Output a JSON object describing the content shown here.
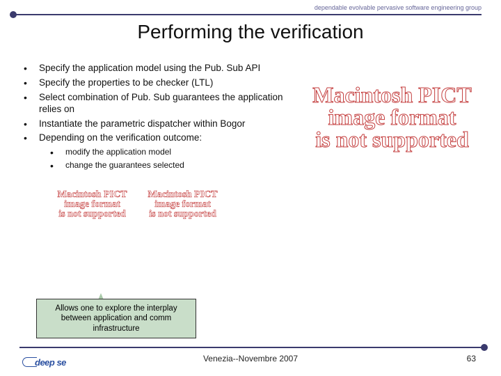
{
  "branding": "dependable evolvable pervasive software engineering group",
  "title": "Performing the verification",
  "bullets": [
    "Specify the application model using the Pub. Sub API",
    "Specify the properties to be checker (LTL)",
    "Select combination of Pub. Sub guarantees the application relies on",
    "Instantiate the parametric dispatcher within Bogor",
    "Depending on the verification outcome:"
  ],
  "sub_bullets": [
    "modify the application model",
    "change the guarantees selected"
  ],
  "pict_large_lines": {
    "l1": "Macintosh PICT",
    "l2": "image format",
    "l3": "is not supported"
  },
  "pict_small": {
    "l1": "Macintosh PICT",
    "l2": "image format",
    "l3": "is not supported"
  },
  "callout": "Allows one to explore the interplay between application and comm infrastructure",
  "footer": {
    "logo": "deep se",
    "center": "Venezia--Novembre 2007",
    "page": "63"
  },
  "colors": {
    "rule": "#3a3a6d",
    "pict_outline": "#c43f3f",
    "callout_bg": "#c9dec9"
  }
}
